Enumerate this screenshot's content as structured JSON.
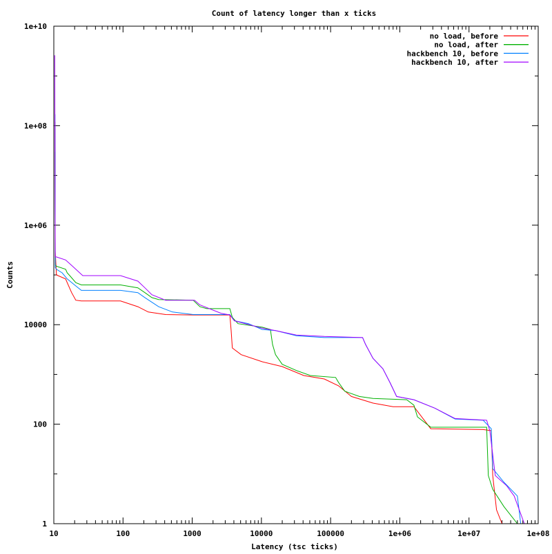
{
  "chart_data": {
    "type": "line",
    "title": "Count of latency longer than x ticks",
    "xlabel": "Latency (tsc ticks)",
    "ylabel": "Counts",
    "xscale": "log",
    "yscale": "log",
    "xlim": [
      10,
      100000000
    ],
    "ylim": [
      1,
      10000000000
    ],
    "xticks": [
      {
        "v": 10,
        "label": "10"
      },
      {
        "v": 100,
        "label": "100"
      },
      {
        "v": 1000,
        "label": "1000"
      },
      {
        "v": 10000,
        "label": "10000"
      },
      {
        "v": 100000,
        "label": "100000"
      },
      {
        "v": 1000000,
        "label": "1e+06"
      },
      {
        "v": 10000000,
        "label": "1e+07"
      },
      {
        "v": 100000000,
        "label": "1e+08"
      }
    ],
    "yticks": [
      {
        "v": 1,
        "label": "1"
      },
      {
        "v": 100,
        "label": "100"
      },
      {
        "v": 10000,
        "label": "10000"
      },
      {
        "v": 1000000,
        "label": "1e+06"
      },
      {
        "v": 100000000,
        "label": "1e+08"
      },
      {
        "v": 10000000000,
        "label": "1e+10"
      }
    ],
    "legend_position": "top-right",
    "series": [
      {
        "name": "no load, before",
        "color": "#ff0000",
        "points": [
          [
            10.4,
            120000000
          ],
          [
            10.5,
            300000
          ],
          [
            10.9,
            100000
          ],
          [
            14.8,
            83000
          ],
          [
            15.6,
            70000
          ],
          [
            18.1,
            44000
          ],
          [
            20.8,
            31000
          ],
          [
            25,
            30000
          ],
          [
            92,
            30000
          ],
          [
            164,
            23000
          ],
          [
            232,
            18000
          ],
          [
            412,
            16000
          ],
          [
            1030,
            15700
          ],
          [
            3500,
            15700
          ],
          [
            3650,
            7600
          ],
          [
            3800,
            3400
          ],
          [
            5100,
            2500
          ],
          [
            10300,
            1800
          ],
          [
            20000,
            1440
          ],
          [
            41000,
            950
          ],
          [
            81000,
            810
          ],
          [
            130000,
            590
          ],
          [
            200000,
            360
          ],
          [
            410000,
            265
          ],
          [
            800000,
            225
          ],
          [
            1600000,
            225
          ],
          [
            2800000,
            81
          ],
          [
            16000000,
            78
          ],
          [
            21000000,
            74
          ],
          [
            22000000,
            9.3
          ],
          [
            25000000,
            1.9
          ],
          [
            30000000,
            1
          ]
        ]
      },
      {
        "name": "no load, after",
        "color": "#00b000",
        "points": [
          [
            10.4,
            30000000
          ],
          [
            10.5,
            160000
          ],
          [
            10.9,
            150000
          ],
          [
            14.8,
            130000
          ],
          [
            15.6,
            110000
          ],
          [
            17,
            97000
          ],
          [
            20.8,
            70000
          ],
          [
            25,
            63000
          ],
          [
            92,
            63000
          ],
          [
            164,
            55000
          ],
          [
            207,
            44000
          ],
          [
            261,
            35000
          ],
          [
            327,
            32000
          ],
          [
            1030,
            31000
          ],
          [
            1290,
            23000
          ],
          [
            1620,
            21000
          ],
          [
            3500,
            21000
          ],
          [
            3800,
            14000
          ],
          [
            4600,
            10500
          ],
          [
            10300,
            8900
          ],
          [
            13500,
            8000
          ],
          [
            14500,
            4000
          ],
          [
            16000,
            2500
          ],
          [
            20000,
            1600
          ],
          [
            32000,
            1200
          ],
          [
            51000,
            950
          ],
          [
            118000,
            870
          ],
          [
            130000,
            690
          ],
          [
            160000,
            460
          ],
          [
            260000,
            360
          ],
          [
            410000,
            330
          ],
          [
            1260000,
            310
          ],
          [
            1600000,
            240
          ],
          [
            1800000,
            140
          ],
          [
            2800000,
            87
          ],
          [
            18000000,
            87
          ],
          [
            19000000,
            9.3
          ],
          [
            22000000,
            4.9
          ],
          [
            32000000,
            2.2
          ],
          [
            50000000,
            1
          ]
        ]
      },
      {
        "name": "hackbench 10, before",
        "color": "#0080ff",
        "points": [
          [
            10.4,
            170000000
          ],
          [
            10.5,
            140000
          ],
          [
            10.9,
            130000
          ],
          [
            13.2,
            110000
          ],
          [
            15.6,
            83000
          ],
          [
            20.8,
            60000
          ],
          [
            25,
            49000
          ],
          [
            92,
            49000
          ],
          [
            164,
            44000
          ],
          [
            207,
            35000
          ],
          [
            327,
            23000
          ],
          [
            519,
            18000
          ],
          [
            1030,
            16000
          ],
          [
            3500,
            16000
          ],
          [
            4070,
            12000
          ],
          [
            6500,
            10500
          ],
          [
            10300,
            8000
          ],
          [
            16000,
            7600
          ],
          [
            32000,
            6000
          ],
          [
            81000,
            5500
          ],
          [
            290000,
            5500
          ],
          [
            320000,
            4000
          ],
          [
            410000,
            2100
          ],
          [
            570000,
            1300
          ],
          [
            720000,
            690
          ],
          [
            900000,
            360
          ],
          [
            1600000,
            310
          ],
          [
            3200000,
            210
          ],
          [
            6300000,
            127
          ],
          [
            16000000,
            120
          ],
          [
            21000000,
            81
          ],
          [
            22000000,
            12.8
          ],
          [
            32000000,
            6.8
          ],
          [
            50000000,
            3.6
          ],
          [
            56000000,
            1
          ]
        ]
      },
      {
        "name": "hackbench 10, after",
        "color": "#a000ff",
        "points": [
          [
            10.3,
            2600000000
          ],
          [
            10.5,
            230000
          ],
          [
            10.9,
            230000
          ],
          [
            14.8,
            200000
          ],
          [
            18.6,
            150000
          ],
          [
            26.2,
            97000
          ],
          [
            92,
            97000
          ],
          [
            164,
            75000
          ],
          [
            207,
            55000
          ],
          [
            261,
            40000
          ],
          [
            412,
            31000
          ],
          [
            1080,
            31000
          ],
          [
            1290,
            25000
          ],
          [
            2600,
            17000
          ],
          [
            3500,
            15700
          ],
          [
            4070,
            12000
          ],
          [
            10300,
            8500
          ],
          [
            16000,
            7600
          ],
          [
            32000,
            6200
          ],
          [
            81000,
            5800
          ],
          [
            290000,
            5500
          ],
          [
            320000,
            4000
          ],
          [
            410000,
            2100
          ],
          [
            570000,
            1300
          ],
          [
            720000,
            690
          ],
          [
            900000,
            360
          ],
          [
            1600000,
            310
          ],
          [
            3200000,
            210
          ],
          [
            6300000,
            130
          ],
          [
            18000000,
            120
          ],
          [
            20000000,
            74
          ],
          [
            24000000,
            9.3
          ],
          [
            35000000,
            5.8
          ],
          [
            45000000,
            3.6
          ],
          [
            63000000,
            1
          ]
        ]
      }
    ]
  }
}
